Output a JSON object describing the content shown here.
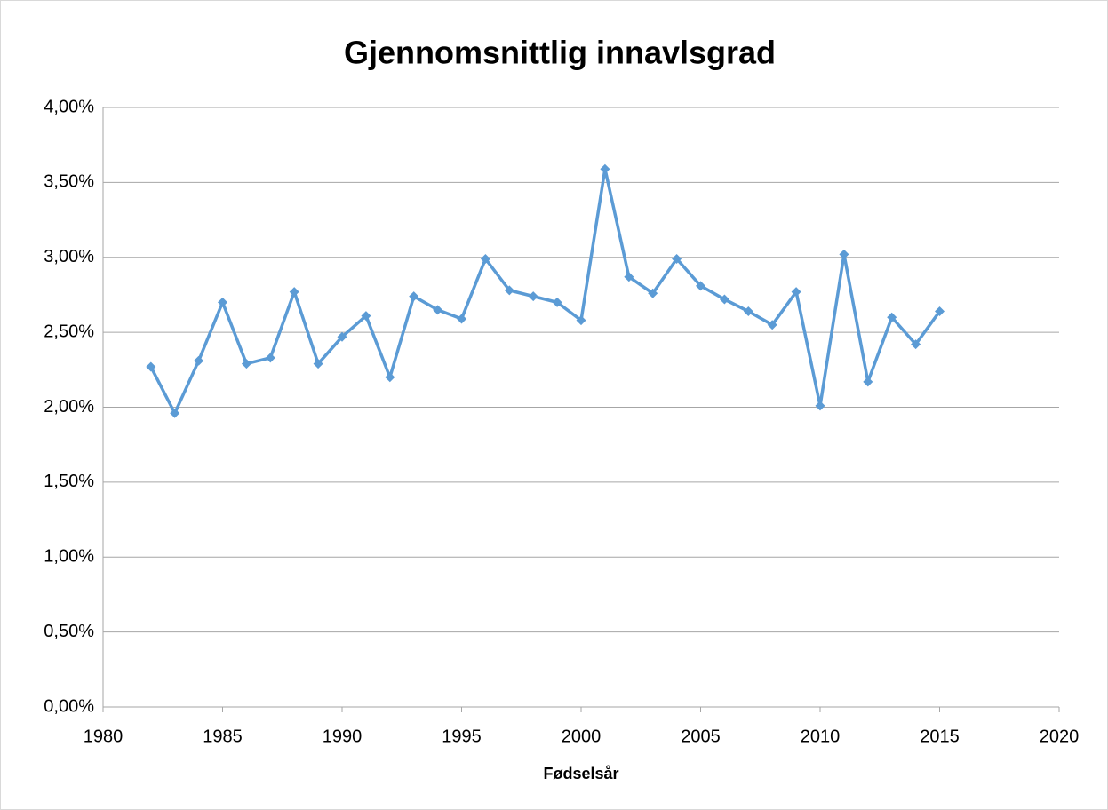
{
  "chart_data": {
    "type": "line",
    "title": "Gjennomsnittlig innavlsgrad",
    "x_label": "Fødselsår",
    "x": [
      1982,
      1983,
      1984,
      1985,
      1986,
      1987,
      1988,
      1989,
      1990,
      1991,
      1992,
      1993,
      1994,
      1995,
      1996,
      1997,
      1998,
      1999,
      2000,
      2001,
      2002,
      2003,
      2004,
      2005,
      2006,
      2007,
      2008,
      2009,
      2010,
      2011,
      2012,
      2013,
      2014,
      2015
    ],
    "series": [
      {
        "color": "#5b9bd5",
        "values": [
          2.27,
          1.96,
          2.31,
          2.7,
          2.29,
          2.33,
          2.77,
          2.29,
          2.47,
          2.61,
          2.2,
          2.74,
          2.65,
          2.59,
          2.99,
          2.78,
          2.74,
          2.7,
          2.58,
          3.59,
          2.87,
          2.76,
          2.99,
          2.81,
          2.72,
          2.64,
          2.55,
          2.77,
          2.01,
          3.02,
          2.17,
          2.6,
          2.42,
          2.64
        ]
      }
    ],
    "xlim": [
      1980,
      2020
    ],
    "xticks": [
      1980,
      1985,
      1990,
      1995,
      2000,
      2005,
      2010,
      2015,
      2020
    ],
    "ylim": [
      0,
      4
    ],
    "yticks": [
      {
        "value": 0,
        "label": "0,00%"
      },
      {
        "value": 0.5,
        "label": "0,50%"
      },
      {
        "value": 1,
        "label": "1,00%"
      },
      {
        "value": 1.5,
        "label": "1,50%"
      },
      {
        "value": 2,
        "label": "2,00%"
      },
      {
        "value": 2.5,
        "label": "2,50%"
      },
      {
        "value": 3,
        "label": "3,00%"
      },
      {
        "value": 3.5,
        "label": "3,50%"
      },
      {
        "value": 4,
        "label": "4,00%"
      }
    ],
    "grid": true
  }
}
